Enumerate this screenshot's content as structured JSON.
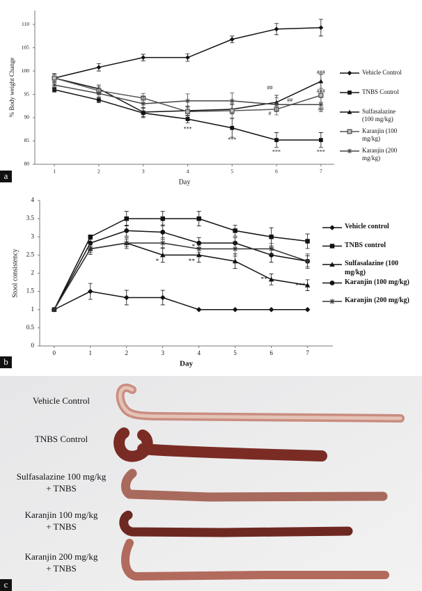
{
  "chart_data": [
    {
      "type": "line",
      "ylabel": "% Body weight  Change",
      "xlabel": "Day",
      "x": [
        1,
        2,
        3,
        4,
        5,
        6,
        7
      ],
      "xlim": [
        0.56,
        7.3
      ],
      "xticks": [
        1,
        2,
        3,
        4,
        5,
        6,
        7
      ],
      "ylim": [
        80,
        113
      ],
      "yticks": [
        80,
        85,
        90,
        95,
        100,
        105,
        110
      ],
      "grid": false,
      "legend": "right",
      "series": [
        {
          "name": "Vehicle Control",
          "color": "#111111",
          "marker": "diamond",
          "values": [
            98.5,
            100.8,
            102.9,
            102.9,
            106.8,
            109,
            109.3
          ],
          "errors": [
            0.8,
            0.8,
            0.7,
            0.8,
            0.7,
            1.2,
            1.8
          ]
        },
        {
          "name": "TNBS Control",
          "color": "#111111",
          "marker": "square",
          "values": [
            96,
            93.8,
            91,
            89.7,
            87.8,
            85.2,
            85.2
          ],
          "errors": [
            0.5,
            0.6,
            1,
            0.8,
            2,
            1.6,
            1.6
          ]
        },
        {
          "name": "Sulfasalazine (100 mg/kg)",
          "color": "#111111",
          "marker": "triangle",
          "values": [
            98.5,
            96.2,
            91.2,
            91.5,
            91.8,
            93.3,
            97.8
          ],
          "errors": [
            0.8,
            0.8,
            1,
            1,
            1,
            1.5,
            1.5
          ]
        },
        {
          "name": "Karanjin (100 mg/kg)",
          "color": "#555555",
          "marker": "square-open",
          "values": [
            98.5,
            95.8,
            94.2,
            91.3,
            91.5,
            91.8,
            94.8
          ],
          "errors": [
            1,
            0.8,
            1,
            1,
            1.5,
            1.2,
            1.5
          ]
        },
        {
          "name": "Karanjin (200 mg/kg)",
          "color": "#444444",
          "marker": "star",
          "values": [
            97,
            95.2,
            93,
            93.6,
            93.6,
            92.8,
            92.8
          ],
          "errors": [
            1,
            1,
            1.5,
            1.5,
            1.7,
            1.5,
            1.5
          ]
        }
      ],
      "annotations": [
        {
          "text": "***",
          "x": 4,
          "y": 87.5
        },
        {
          "text": "***",
          "x": 5,
          "y": 85.2
        },
        {
          "text": "***",
          "x": 6,
          "y": 82.6
        },
        {
          "text": "***",
          "x": 7,
          "y": 82.6
        },
        {
          "text": "##",
          "x": 5.85,
          "y": 96.3
        },
        {
          "text": "##",
          "x": 6.3,
          "y": 93.6
        },
        {
          "text": "#",
          "x": 5.85,
          "y": 90.8
        },
        {
          "text": "###",
          "x": 7,
          "y": 99.6
        },
        {
          "text": "###",
          "x": 7,
          "y": 95.6
        },
        {
          "text": "##",
          "x": 7,
          "y": 91.8
        }
      ]
    },
    {
      "type": "line",
      "ylabel": "Stool consistency",
      "xlabel": "Day",
      "x": [
        0,
        1,
        2,
        3,
        4,
        5,
        6,
        7
      ],
      "xlim": [
        -0.4,
        7.7
      ],
      "xticks": [
        0,
        1,
        2,
        3,
        4,
        5,
        6,
        7
      ],
      "ylim": [
        0,
        4
      ],
      "yticks": [
        0,
        0.5,
        1,
        1.5,
        2,
        2.5,
        3,
        3.5,
        4
      ],
      "grid": false,
      "legend": "right",
      "series": [
        {
          "name": "Vehicle control",
          "color": "#111111",
          "marker": "diamond",
          "values": [
            1,
            1.5,
            1.33,
            1.33,
            1,
            1,
            1,
            1
          ],
          "errors": [
            0,
            0.22,
            0.2,
            0.2,
            0,
            0,
            0,
            0
          ]
        },
        {
          "name": "TNBS control",
          "color": "#111111",
          "marker": "square",
          "values": [
            1,
            3,
            3.5,
            3.5,
            3.5,
            3.17,
            3,
            2.88
          ],
          "errors": [
            0,
            0,
            0.2,
            0.2,
            0.2,
            0.15,
            0.25,
            0.2
          ]
        },
        {
          "name": "Sulfasalazine (100 mg/kg)",
          "color": "#111111",
          "marker": "triangle",
          "values": [
            1,
            2.67,
            2.83,
            2.5,
            2.5,
            2.33,
            1.83,
            1.67
          ],
          "errors": [
            0,
            0.15,
            0.15,
            0.2,
            0.2,
            0.2,
            0.15,
            0.15
          ]
        },
        {
          "name": "Karanjin (100 mg/kg)",
          "color": "#111111",
          "marker": "circle",
          "values": [
            1,
            2.83,
            3.17,
            3.13,
            2.83,
            2.83,
            2.5,
            2.33
          ],
          "errors": [
            0,
            0.1,
            0.15,
            0.2,
            0.15,
            0.15,
            0.2,
            0.15
          ]
        },
        {
          "name": "Karanjin (200 mg/kg)",
          "color": "#333333",
          "marker": "star",
          "values": [
            1,
            2.67,
            2.83,
            2.83,
            2.67,
            2.67,
            2.67,
            2.33
          ],
          "errors": [
            0,
            0.1,
            0.1,
            0.15,
            0.1,
            0.2,
            0.15,
            0.2
          ]
        }
      ],
      "annotations": [
        {
          "text": "*",
          "x": 2.85,
          "y": 2.32
        },
        {
          "text": "*",
          "x": 3.85,
          "y": 2.72
        },
        {
          "text": "**",
          "x": 3.8,
          "y": 2.32
        },
        {
          "text": "**",
          "x": 5.8,
          "y": 1.82
        },
        {
          "text": "***",
          "x": 6.8,
          "y": 1.65
        }
      ]
    }
  ],
  "panel_labels": [
    "a",
    "b",
    "c"
  ],
  "photo_labels": [
    [
      "Vehicle Control"
    ],
    [
      "TNBS Control"
    ],
    [
      "Sulfasalazine 100 mg/kg",
      "+ TNBS"
    ],
    [
      "Karanjin 100 mg/kg",
      "+ TNBS"
    ],
    [
      "Karanjin 200 mg/kg",
      "+ TNBS"
    ]
  ]
}
